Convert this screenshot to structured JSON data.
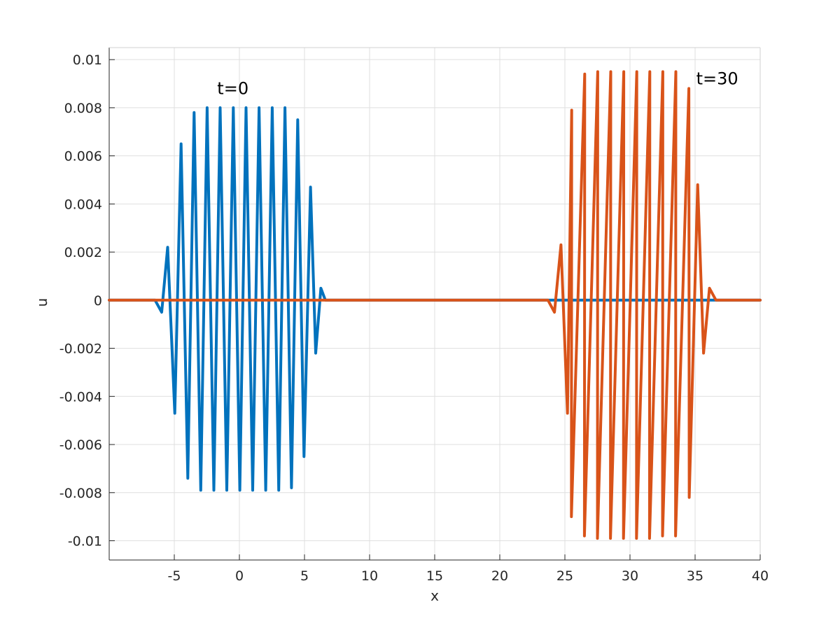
{
  "chart_data": {
    "type": "line",
    "xlabel": "x",
    "ylabel": "u",
    "xlim": [
      -10,
      40
    ],
    "ylim": [
      -0.0108,
      0.0105
    ],
    "grid": true,
    "x_ticks": [
      -5,
      0,
      5,
      10,
      15,
      20,
      25,
      30,
      35,
      40
    ],
    "x_tick_labels": [
      "-5",
      "0",
      "5",
      "10",
      "15",
      "20",
      "25",
      "30",
      "35",
      "40"
    ],
    "y_ticks": [
      0.01,
      0.008,
      0.006,
      0.004,
      0.002,
      0,
      -0.002,
      -0.004,
      -0.006,
      -0.008,
      -0.01
    ],
    "y_tick_labels": [
      "0.01",
      "0.008",
      "0.006",
      "0.004",
      "0.002",
      "0",
      "-0.002",
      "-0.004",
      "-0.006",
      "-0.008",
      "-0.01"
    ],
    "series": [
      {
        "color": "#0072BD",
        "x": [
          -10,
          -6.8,
          -6.48,
          -5.97,
          -5.51,
          -4.96,
          -4.48,
          -3.96,
          -3.48,
          -2.97,
          -2.48,
          -1.96,
          -1.48,
          -0.97,
          -0.47,
          0.03,
          0.51,
          1.02,
          1.51,
          2.02,
          2.52,
          3.02,
          3.5,
          4.0,
          4.48,
          4.96,
          5.46,
          5.86,
          6.26,
          6.6,
          40
        ],
        "y": [
          0,
          0,
          0,
          -0.0005,
          0.0022,
          -0.0047,
          0.0065,
          -0.0074,
          0.0078,
          -0.0079,
          0.008,
          -0.0079,
          0.008,
          -0.0079,
          0.008,
          -0.0079,
          0.008,
          -0.0079,
          0.008,
          -0.0079,
          0.008,
          -0.0079,
          0.008,
          -0.0078,
          0.0075,
          -0.0065,
          0.0047,
          -0.0022,
          0.0005,
          0,
          0
        ]
      },
      {
        "color": "#D95319",
        "x": [
          -10,
          23.3,
          23.7,
          24.2,
          24.7,
          25.2,
          25.52,
          25.5,
          26.52,
          26.5,
          27.52,
          27.5,
          28.52,
          28.5,
          29.52,
          29.5,
          30.52,
          30.5,
          31.52,
          31.5,
          32.52,
          32.5,
          33.52,
          33.5,
          34.52,
          34.55,
          35.2,
          35.65,
          36.1,
          36.6,
          40
        ],
        "y": [
          0,
          0,
          0,
          -0.0005,
          0.0023,
          -0.0047,
          0.0079,
          -0.009,
          0.0094,
          -0.0098,
          0.0095,
          -0.0099,
          0.0095,
          -0.0099,
          0.0095,
          -0.0099,
          0.0095,
          -0.0099,
          0.0095,
          -0.0099,
          0.0095,
          -0.0098,
          0.0095,
          -0.0098,
          0.0088,
          -0.0082,
          0.0048,
          -0.0022,
          0.0005,
          0,
          0
        ]
      }
    ],
    "annotations": [
      {
        "text": "t=0",
        "x": -0.5,
        "y": 0.0088
      },
      {
        "text": "t=30",
        "x": 36.7,
        "y": 0.0092
      }
    ]
  }
}
